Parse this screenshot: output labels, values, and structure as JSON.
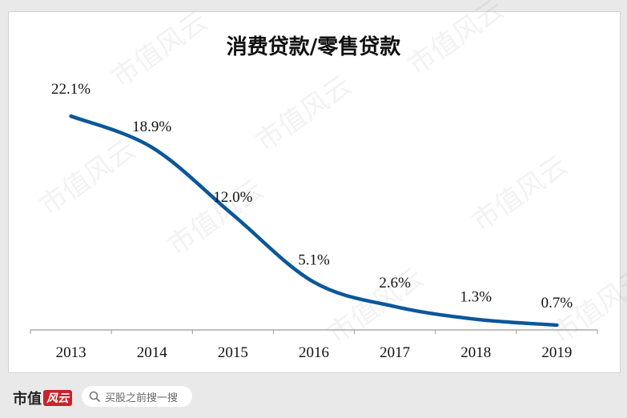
{
  "colors": {
    "line": "#0b5799",
    "axis": "#999999",
    "text": "#111111",
    "watermark": "#000000",
    "brand_red": "#c8232c"
  },
  "watermark": "市值风云",
  "chart_data": {
    "type": "line",
    "title": "消费贷款/零售贷款",
    "xlabel": "",
    "ylabel": "",
    "categories": [
      "2013",
      "2014",
      "2015",
      "2016",
      "2017",
      "2018",
      "2019"
    ],
    "series": [
      {
        "values": [
          22.1,
          18.9,
          12.0,
          5.1,
          2.6,
          1.3,
          0.7
        ]
      }
    ],
    "data_labels": [
      "22.1%",
      "18.9%",
      "12.0%",
      "5.1%",
      "2.6%",
      "1.3%",
      "0.7%"
    ],
    "ylim": [
      0,
      25
    ],
    "grid": false,
    "legend": "none"
  },
  "footer": {
    "brand_text": "市值",
    "brand_mark": "风云",
    "search_placeholder": "买股之前搜一搜"
  }
}
